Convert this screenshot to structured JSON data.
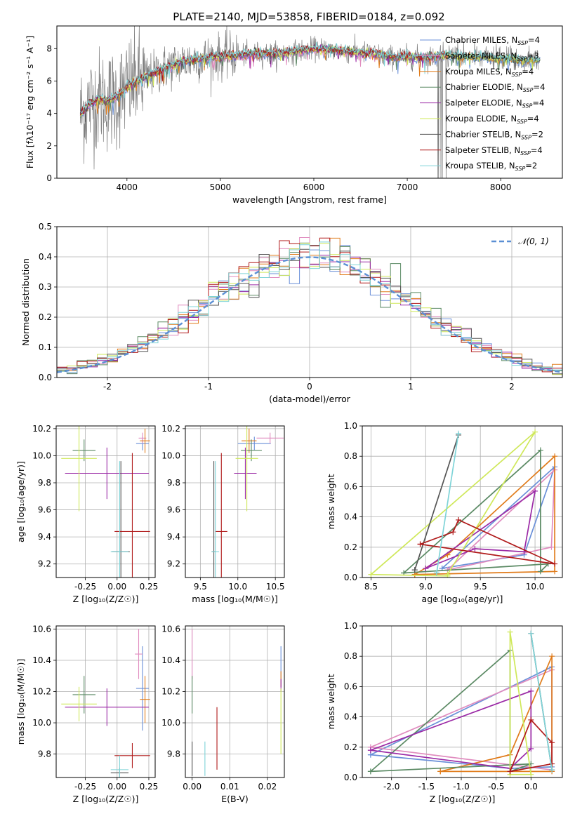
{
  "figure_title": "PLATE=2140, MJD=53858, FIBERID=0184, z=0.092",
  "colors": {
    "Chabrier MILES": "#6a8fd8",
    "Salpeter MILES": "#e08cbf",
    "Kroupa MILES": "#e07b1a",
    "Chabrier ELODIE": "#5b8a64",
    "Salpeter ELODIE": "#9b2aa6",
    "Kroupa ELODIE": "#cfe85a",
    "Chabrier STELIB": "#555555",
    "Salpeter STELIB": "#b01a1a",
    "Kroupa STELIB": "#7fd4d8"
  },
  "chart_data": [
    {
      "id": "spectrum",
      "type": "line",
      "title": "PLATE=2140, MJD=53858, FIBERID=0184, z=0.092",
      "xlabel": "wavelength [Angstrom, rest frame]",
      "ylabel": "Flux [f_λ10^-17 erg cm^-2 s^-1 A^-1]",
      "xlim": [
        3250,
        8660
      ],
      "ylim": [
        0,
        9.4
      ],
      "xticks": [
        4000,
        5000,
        6000,
        7000,
        8000
      ],
      "yticks": [
        0,
        2,
        4,
        6,
        8
      ],
      "data_continuum": {
        "x": [
          3500,
          3600,
          3700,
          3800,
          3900,
          4000,
          4100,
          4200,
          4400,
          4600,
          4800,
          5000,
          5200,
          5400,
          5600,
          5800,
          6000,
          6200,
          6400,
          6600,
          6800,
          7000,
          7200,
          7400,
          7600,
          7800,
          8000,
          8200,
          8400
        ],
        "y": [
          3.9,
          4.6,
          4.9,
          4.8,
          5.0,
          5.6,
          6.0,
          6.2,
          6.8,
          7.2,
          7.4,
          7.5,
          7.6,
          7.7,
          7.7,
          7.8,
          8.0,
          7.9,
          7.8,
          7.7,
          7.5,
          7.5,
          7.4,
          7.6,
          7.5,
          7.5,
          7.4,
          7.3,
          7.3
        ]
      },
      "legend": [
        "Chabrier MILES, N_SSP=4",
        "Salpeter MILES, N_SSP=3",
        "Kroupa MILES, N_SSP=4",
        "Chabrier ELODIE, N_SSP=4",
        "Salpeter ELODIE, N_SSP=4",
        "Kroupa ELODIE, N_SSP=4",
        "Chabrier STELIB, N_SSP=2",
        "Salpeter STELIB, N_SSP=4",
        "Kroupa STELIB, N_SSP=2"
      ],
      "legend_loc": "right"
    },
    {
      "id": "residuals",
      "type": "histogram",
      "xlabel": "(data-model)/error",
      "ylabel": "Normed distribution",
      "xlim": [
        -2.5,
        2.5
      ],
      "ylim": [
        0,
        0.5
      ],
      "xticks": [
        -2,
        -1,
        0,
        1,
        2
      ],
      "yticks": [
        0.0,
        0.1,
        0.2,
        0.3,
        0.4,
        0.5
      ],
      "bin_width": 0.1,
      "legend": [
        "𝒩(0, 1)"
      ],
      "legend_loc": "upper right",
      "reference": "gaussian mu=0 sigma=1",
      "grid": true
    },
    {
      "id": "age_vs_Z",
      "type": "errorbar",
      "xlabel": "Z [log10(Z/Z⊙)]",
      "ylabel": "age [log10(age/yr)]",
      "xlim": [
        -0.48,
        0.3
      ],
      "ylim": [
        9.1,
        10.22
      ],
      "xticks": [
        -0.25,
        0.0,
        0.25
      ],
      "yticks": [
        9.2,
        9.4,
        9.6,
        9.8,
        10.0,
        10.2
      ],
      "points": [
        {
          "model": "Chabrier MILES",
          "x": 0.2,
          "y": 10.09,
          "xerr": 0.05,
          "yerr": 0.05
        },
        {
          "model": "Salpeter MILES",
          "x": 0.2,
          "y": 10.13,
          "xerr": 0.03,
          "yerr": 0.04
        },
        {
          "model": "Kroupa MILES",
          "x": 0.22,
          "y": 10.11,
          "xerr": 0.04,
          "yerr": 0.09
        },
        {
          "model": "Chabrier ELODIE",
          "x": -0.26,
          "y": 10.04,
          "xerr": 0.09,
          "yerr": 0.08
        },
        {
          "model": "Salpeter ELODIE",
          "x": -0.08,
          "y": 9.87,
          "xerr": 0.33,
          "yerr": 0.19
        },
        {
          "model": "Kroupa ELODIE",
          "x": -0.3,
          "y": 9.98,
          "xerr": 0.14,
          "yerr": 0.39
        },
        {
          "model": "Chabrier STELIB",
          "x": 0.03,
          "y": 9.29,
          "xerr": 0.07,
          "yerr": 0.67
        },
        {
          "model": "Salpeter STELIB",
          "x": 0.12,
          "y": 9.44,
          "xerr": 0.14,
          "yerr": 0.58
        },
        {
          "model": "Kroupa STELIB",
          "x": 0.02,
          "y": 9.29,
          "xerr": 0.07,
          "yerr": 0.67
        }
      ],
      "grid": true
    },
    {
      "id": "age_vs_mass",
      "type": "errorbar",
      "xlabel": "mass [log10(M/M⊙)]",
      "ylabel": "",
      "xlim": [
        9.3,
        10.62
      ],
      "ylim": [
        9.1,
        10.22
      ],
      "xticks": [
        9.5,
        10.0,
        10.5
      ],
      "yticks": [
        9.2,
        9.4,
        9.6,
        9.8,
        10.0,
        10.2
      ],
      "points": [
        {
          "model": "Chabrier MILES",
          "x": 10.22,
          "y": 10.09,
          "xerr": 0.22,
          "yerr": 0.05
        },
        {
          "model": "Salpeter MILES",
          "x": 10.43,
          "y": 10.13,
          "xerr": 0.18,
          "yerr": 0.04
        },
        {
          "model": "Kroupa MILES",
          "x": 10.15,
          "y": 10.11,
          "xerr": 0.1,
          "yerr": 0.09
        },
        {
          "model": "Chabrier ELODIE",
          "x": 10.18,
          "y": 10.04,
          "xerr": 0.14,
          "yerr": 0.08
        },
        {
          "model": "Salpeter ELODIE",
          "x": 10.1,
          "y": 9.87,
          "xerr": 0.15,
          "yerr": 0.19
        },
        {
          "model": "Kroupa ELODIE",
          "x": 10.12,
          "y": 9.98,
          "xerr": 0.15,
          "yerr": 0.39
        },
        {
          "model": "Chabrier STELIB",
          "x": 9.68,
          "y": 9.29,
          "xerr": 0.03,
          "yerr": 0.67
        },
        {
          "model": "Salpeter STELIB",
          "x": 9.78,
          "y": 9.44,
          "xerr": 0.08,
          "yerr": 0.58
        },
        {
          "model": "Kroupa STELIB",
          "x": 9.7,
          "y": 9.29,
          "xerr": 0.05,
          "yerr": 0.67
        }
      ],
      "grid": true
    },
    {
      "id": "weight_vs_age",
      "type": "line",
      "xlabel": "age [log10(age/yr)]",
      "ylabel": "mass weight",
      "xlim": [
        8.42,
        10.25
      ],
      "ylim": [
        0,
        1.0
      ],
      "xticks": [
        8.5,
        9.0,
        9.5,
        10.0
      ],
      "yticks": [
        0.0,
        0.2,
        0.4,
        0.6,
        0.8,
        1.0
      ],
      "series": [
        {
          "name": "Chabrier MILES",
          "x": [
            9.15,
            9.9,
            10.18,
            9.15
          ],
          "y": [
            0.06,
            0.15,
            0.73,
            0.06
          ]
        },
        {
          "name": "Salpeter MILES",
          "x": [
            9.2,
            10.15,
            10.18,
            9.2
          ],
          "y": [
            0.05,
            0.2,
            0.71,
            0.05
          ]
        },
        {
          "name": "Kroupa MILES",
          "x": [
            8.9,
            9.2,
            10.18,
            10.18,
            8.9
          ],
          "y": [
            0.02,
            0.15,
            0.8,
            0.04,
            0.02
          ]
        },
        {
          "name": "Chabrier ELODIE",
          "x": [
            8.8,
            10.05,
            10.05,
            10.12,
            8.8
          ],
          "y": [
            0.03,
            0.84,
            0.04,
            0.09,
            0.03
          ]
        },
        {
          "name": "Salpeter ELODIE",
          "x": [
            9.0,
            9.45,
            9.9,
            10.0,
            9.0
          ],
          "y": [
            0.06,
            0.19,
            0.17,
            0.57,
            0.06
          ]
        },
        {
          "name": "Kroupa ELODIE",
          "x": [
            8.5,
            9.2,
            9.2,
            10.0,
            8.5
          ],
          "y": [
            0.02,
            0.01,
            0.02,
            0.96,
            0.02
          ]
        },
        {
          "name": "Chabrier STELIB",
          "x": [
            8.9,
            9.3,
            8.9
          ],
          "y": [
            0.05,
            0.94,
            0.05
          ]
        },
        {
          "name": "Salpeter STELIB",
          "x": [
            8.95,
            9.25,
            9.3,
            10.18,
            8.95
          ],
          "y": [
            0.22,
            0.3,
            0.38,
            0.09,
            0.22
          ]
        },
        {
          "name": "Kroupa STELIB",
          "x": [
            9.1,
            9.3,
            9.1
          ],
          "y": [
            0.03,
            0.95,
            0.03
          ]
        }
      ],
      "grid": true
    },
    {
      "id": "mass_vs_Z",
      "type": "errorbar",
      "xlabel": "Z [log10(Z/Z⊙)]",
      "ylabel": "mass [log10(M/M⊙)]",
      "xlim": [
        -0.48,
        0.3
      ],
      "ylim": [
        9.65,
        10.62
      ],
      "xticks": [
        -0.25,
        0.0,
        0.25
      ],
      "yticks": [
        9.8,
        10.0,
        10.2,
        10.4,
        10.6
      ],
      "points": [
        {
          "model": "Chabrier MILES",
          "x": 0.2,
          "y": 10.22,
          "xerr": 0.05,
          "yerr": 0.27
        },
        {
          "model": "Salpeter MILES",
          "x": 0.17,
          "y": 10.44,
          "xerr": 0.03,
          "yerr": 0.16
        },
        {
          "model": "Kroupa MILES",
          "x": 0.22,
          "y": 10.15,
          "xerr": 0.04,
          "yerr": 0.15
        },
        {
          "model": "Chabrier ELODIE",
          "x": -0.26,
          "y": 10.18,
          "xerr": 0.09,
          "yerr": 0.12
        },
        {
          "model": "Salpeter ELODIE",
          "x": -0.08,
          "y": 10.1,
          "xerr": 0.33,
          "yerr": 0.12
        },
        {
          "model": "Kroupa ELODIE",
          "x": -0.3,
          "y": 10.12,
          "xerr": 0.14,
          "yerr": 0.11
        },
        {
          "model": "Chabrier STELIB",
          "x": 0.02,
          "y": 9.68,
          "xerr": 0.07,
          "yerr": 0.03
        },
        {
          "model": "Salpeter STELIB",
          "x": 0.12,
          "y": 9.79,
          "xerr": 0.14,
          "yerr": 0.08
        },
        {
          "model": "Kroupa STELIB",
          "x": 0.02,
          "y": 9.7,
          "xerr": 0.07,
          "yerr": 0.09
        }
      ],
      "grid": true
    },
    {
      "id": "mass_vs_EBV",
      "type": "errorbar",
      "xlabel": "E(B-V)",
      "ylabel": "",
      "xlim": [
        -0.0018,
        0.0245
      ],
      "ylim": [
        9.65,
        10.62
      ],
      "xticks": [
        0.0,
        0.01,
        0.02
      ],
      "yticks": [
        9.8,
        10.0,
        10.2,
        10.4,
        10.6
      ],
      "points": [
        {
          "model": "Chabrier MILES",
          "x": 0.0236,
          "y": 10.36,
          "xerr": 0,
          "yerr": 0.13
        },
        {
          "model": "Salpeter MILES",
          "x": 0.0,
          "y": 10.44,
          "xerr": 0,
          "yerr": 0.16
        },
        {
          "model": "Kroupa MILES",
          "x": 0.0236,
          "y": 10.28,
          "xerr": 0,
          "yerr": 0.05
        },
        {
          "model": "Chabrier ELODIE",
          "x": 0.0,
          "y": 10.18,
          "xerr": 0,
          "yerr": 0.12
        },
        {
          "model": "Salpeter ELODIE",
          "x": 0.0236,
          "y": 10.24,
          "xerr": 0,
          "yerr": 0.04
        },
        {
          "model": "Kroupa ELODIE",
          "x": 0.0236,
          "y": 10.01,
          "xerr": 0,
          "yerr": 0.21
        },
        {
          "model": "Chabrier STELIB",
          "x": 0.0,
          "y": 9.77,
          "xerr": 0,
          "yerr": 0.11
        },
        {
          "model": "Salpeter STELIB",
          "x": 0.0066,
          "y": 9.9,
          "xerr": 0,
          "yerr": 0.2
        },
        {
          "model": "Kroupa STELIB",
          "x": 0.0034,
          "y": 9.77,
          "xerr": 0,
          "yerr": 0.11
        }
      ],
      "grid": true
    },
    {
      "id": "weight_vs_Z",
      "type": "line",
      "xlabel": "Z [log10(Z/Z⊙)]",
      "ylabel": "mass weight",
      "xlim": [
        -2.42,
        0.45
      ],
      "ylim": [
        0,
        1.0
      ],
      "xticks": [
        -2.0,
        -1.5,
        -1.0,
        -0.5,
        0.0
      ],
      "yticks": [
        0.0,
        0.2,
        0.4,
        0.6,
        0.8,
        1.0
      ],
      "series": [
        {
          "name": "Chabrier MILES",
          "x": [
            -2.3,
            -0.3,
            0.3,
            0.3,
            -2.3
          ],
          "y": [
            0.15,
            0.06,
            0.07,
            0.73,
            0.15
          ]
        },
        {
          "name": "Salpeter MILES",
          "x": [
            -2.3,
            0.3,
            0.3,
            -2.3
          ],
          "y": [
            0.2,
            0.05,
            0.71,
            0.2
          ]
        },
        {
          "name": "Kroupa MILES",
          "x": [
            -1.3,
            -0.3,
            0.3,
            0.3,
            -1.3
          ],
          "y": [
            0.04,
            0.15,
            0.8,
            0.04,
            0.04
          ]
        },
        {
          "name": "Chabrier ELODIE",
          "x": [
            -2.3,
            -0.3,
            -0.3,
            0.0,
            -2.3
          ],
          "y": [
            0.04,
            0.84,
            0.04,
            0.09,
            0.04
          ]
        },
        {
          "name": "Salpeter ELODIE",
          "x": [
            -2.3,
            -0.3,
            0.0,
            0.0,
            -2.3
          ],
          "y": [
            0.18,
            0.06,
            0.19,
            0.57,
            0.18
          ]
        },
        {
          "name": "Kroupa ELODIE",
          "x": [
            -0.3,
            -0.3,
            0.0,
            -0.3
          ],
          "y": [
            0.02,
            0.96,
            0.02,
            0.02
          ]
        },
        {
          "name": "Chabrier STELIB",
          "x": [
            0.0,
            0.3
          ],
          "y": [
            0.95,
            0.05
          ]
        },
        {
          "name": "Salpeter STELIB",
          "x": [
            -0.3,
            0.0,
            0.3,
            0.3,
            -0.3
          ],
          "y": [
            0.04,
            0.38,
            0.23,
            0.09,
            0.04
          ]
        },
        {
          "name": "Kroupa STELIB",
          "x": [
            0.0,
            0.3
          ],
          "y": [
            0.95,
            0.05
          ]
        }
      ],
      "grid": true
    }
  ]
}
